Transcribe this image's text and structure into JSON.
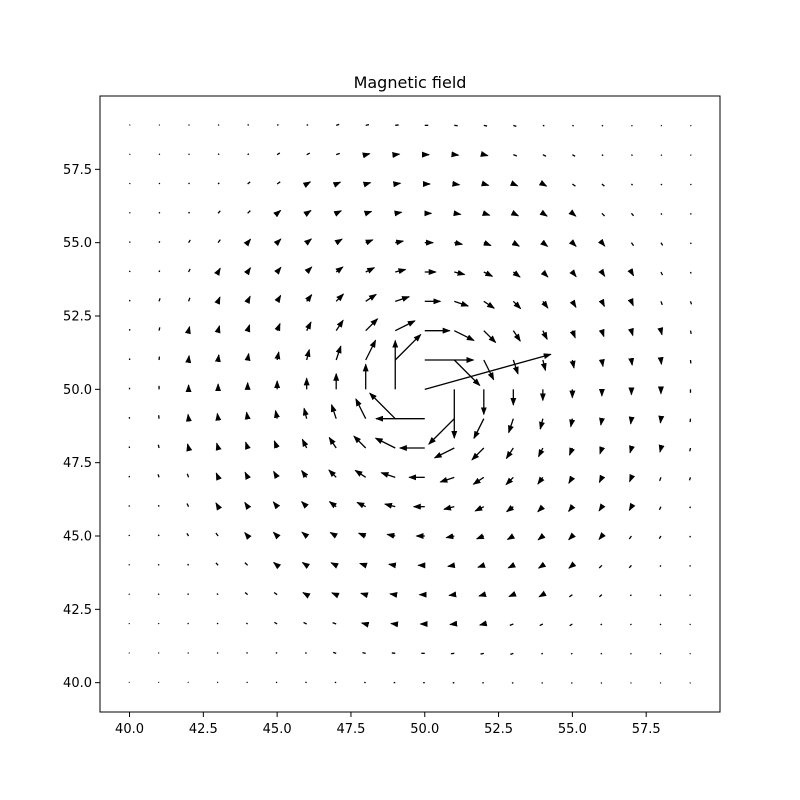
{
  "chart_data": {
    "type": "quiver",
    "title": "Magnetic field",
    "xlabel": "",
    "ylabel": "",
    "xlim": [
      39.0,
      60.0
    ],
    "ylim": [
      39.0,
      60.0
    ],
    "xticks": [
      40.0,
      42.5,
      45.0,
      47.5,
      50.0,
      52.5,
      55.0,
      57.5
    ],
    "yticks": [
      40.0,
      42.5,
      45.0,
      47.5,
      50.0,
      52.5,
      55.0,
      57.5
    ],
    "xtick_labels": [
      "40.0",
      "42.5",
      "45.0",
      "47.5",
      "50.0",
      "52.5",
      "55.0",
      "57.5"
    ],
    "ytick_labels": [
      "40.0",
      "42.5",
      "45.0",
      "47.5",
      "50.0",
      "52.5",
      "55.0",
      "57.5"
    ],
    "grid": false,
    "field": {
      "description_units": "data units",
      "x_start": 40,
      "x_end": 59,
      "x_step": 1,
      "y_start": 40,
      "y_end": 59,
      "y_step": 1,
      "center": [
        50,
        50
      ],
      "rotation": "clockwise"
    },
    "arrow_color": "#000000"
  }
}
